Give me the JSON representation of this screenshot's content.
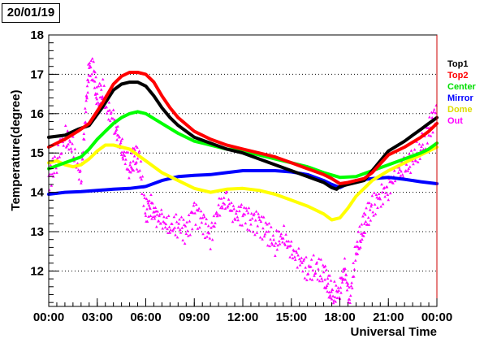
{
  "date_label": "20/01/19",
  "chart_data": {
    "type": "line",
    "title": "",
    "xlabel": "Universal Time",
    "ylabel": "Temperature(degree)",
    "x_ticks": [
      "00:00",
      "03:00",
      "06:00",
      "09:00",
      "12:00",
      "15:00",
      "18:00",
      "21:00",
      "00:00"
    ],
    "xlim": [
      0,
      24
    ],
    "y_ticks": [
      "12",
      "13",
      "14",
      "15",
      "16",
      "17",
      "18"
    ],
    "ylim": [
      11.1,
      18.0
    ],
    "grid": "horizontal dotted",
    "legend_position": "right",
    "series": [
      {
        "name": "Top1",
        "color": "#000000",
        "x": [
          0,
          1,
          1.8,
          2.5,
          3.3,
          4,
          4.5,
          5,
          5.5,
          6,
          6.5,
          7,
          7.5,
          8,
          9,
          10,
          11,
          12,
          13,
          14,
          15,
          16,
          17,
          17.5,
          17.8,
          18,
          18.5,
          19,
          19.5,
          20,
          21,
          22,
          22.5,
          23,
          23.5,
          24
        ],
        "y": [
          15.4,
          15.45,
          15.6,
          15.7,
          16.15,
          16.6,
          16.75,
          16.8,
          16.8,
          16.7,
          16.45,
          16.15,
          15.9,
          15.7,
          15.4,
          15.25,
          15.1,
          15.0,
          14.85,
          14.7,
          14.55,
          14.4,
          14.25,
          14.12,
          14.08,
          14.15,
          14.2,
          14.25,
          14.3,
          14.55,
          15.05,
          15.3,
          15.45,
          15.6,
          15.75,
          15.9
        ]
      },
      {
        "name": "Top2",
        "color": "#ff0000",
        "x": [
          0,
          1,
          1.8,
          2.5,
          3.3,
          4,
          4.5,
          5,
          5.5,
          6,
          6.5,
          7,
          7.5,
          8,
          9,
          10,
          11,
          12,
          13,
          14,
          15,
          16,
          17,
          17.5,
          18,
          18.5,
          19,
          19.5,
          20,
          21,
          22,
          23,
          23.5,
          24
        ],
        "y": [
          15.15,
          15.35,
          15.55,
          15.75,
          16.25,
          16.75,
          16.95,
          17.05,
          17.05,
          17.0,
          16.8,
          16.45,
          16.15,
          15.9,
          15.55,
          15.35,
          15.2,
          15.1,
          15.0,
          14.9,
          14.75,
          14.6,
          14.45,
          14.35,
          14.22,
          14.25,
          14.3,
          14.35,
          14.5,
          14.95,
          15.15,
          15.4,
          15.55,
          15.75
        ]
      },
      {
        "name": "Center",
        "color": "#00ff00",
        "x": [
          0,
          1,
          2,
          2.5,
          3,
          3.5,
          4,
          4.5,
          5,
          5.5,
          6,
          7,
          8,
          9,
          10,
          11,
          12,
          13,
          14,
          15,
          16,
          17,
          18,
          19,
          20,
          21,
          22,
          23,
          23.5,
          24
        ],
        "y": [
          14.6,
          14.75,
          14.9,
          15.1,
          15.35,
          15.55,
          15.75,
          15.9,
          16.0,
          16.05,
          16.0,
          15.75,
          15.5,
          15.3,
          15.2,
          15.1,
          15.05,
          14.95,
          14.85,
          14.75,
          14.65,
          14.5,
          14.38,
          14.4,
          14.55,
          14.7,
          14.85,
          15.0,
          15.1,
          15.25
        ]
      },
      {
        "name": "Mirror",
        "color": "#0000ff",
        "x": [
          0,
          1,
          2,
          3,
          4,
          5,
          6,
          7,
          8,
          9,
          10,
          11,
          12,
          13,
          14,
          15,
          16,
          17,
          17.5,
          18,
          18.5,
          19,
          20,
          21,
          22,
          23,
          24
        ],
        "y": [
          13.95,
          14.0,
          14.02,
          14.05,
          14.08,
          14.1,
          14.15,
          14.3,
          14.4,
          14.43,
          14.45,
          14.5,
          14.55,
          14.55,
          14.55,
          14.52,
          14.45,
          14.3,
          14.2,
          14.12,
          14.22,
          14.3,
          14.35,
          14.38,
          14.33,
          14.27,
          14.22
        ]
      },
      {
        "name": "Dome",
        "color": "#ffff00",
        "x": [
          0,
          0.5,
          1,
          1.5,
          2,
          2.5,
          3,
          3.5,
          4,
          4.5,
          5,
          5.5,
          6,
          7,
          8,
          9,
          10,
          11,
          12,
          13,
          14,
          15,
          16,
          17,
          17.5,
          18,
          18.5,
          19,
          19.5,
          20,
          21,
          22,
          23,
          24
        ],
        "y": [
          14.75,
          14.8,
          14.7,
          14.65,
          14.7,
          14.85,
          15.05,
          15.2,
          15.2,
          15.15,
          15.1,
          14.95,
          14.8,
          14.5,
          14.3,
          14.1,
          14.0,
          14.08,
          14.1,
          14.05,
          13.95,
          13.8,
          13.65,
          13.45,
          13.3,
          13.35,
          13.6,
          13.9,
          14.1,
          14.3,
          14.55,
          14.75,
          14.95,
          15.15
        ]
      },
      {
        "name": "Out",
        "color": "#ff00ff",
        "style": "markers",
        "x": [
          0,
          0.5,
          1,
          1.5,
          2,
          2.3,
          2.5,
          2.8,
          3,
          3.3,
          3.6,
          4,
          4.3,
          4.6,
          5,
          5.3,
          5.6,
          6,
          6.3,
          6.6,
          7,
          7.5,
          8,
          8.5,
          9,
          9.5,
          10,
          10.5,
          11,
          11.5,
          12,
          12.5,
          13,
          13.5,
          14,
          14.5,
          15,
          15.5,
          16,
          16.5,
          17,
          17.3,
          17.6,
          18,
          18.3,
          18.6,
          19,
          19.3,
          19.6,
          20,
          20.5,
          21,
          21.5,
          22,
          22.5,
          23,
          23.5,
          24
        ],
        "y": [
          14.3,
          14.8,
          15.4,
          15.1,
          14.3,
          16.2,
          17.2,
          17.0,
          16.3,
          16.6,
          16.2,
          15.8,
          15.4,
          15.0,
          14.6,
          14.9,
          14.8,
          13.5,
          13.7,
          13.4,
          13.3,
          13.1,
          13.2,
          13.0,
          13.5,
          13.3,
          12.9,
          13.6,
          13.8,
          13.4,
          13.5,
          13.3,
          13.2,
          13.0,
          12.7,
          12.9,
          12.5,
          12.3,
          12.0,
          12.1,
          11.9,
          11.6,
          11.4,
          11.5,
          12.1,
          11.2,
          12.5,
          12.9,
          13.3,
          13.6,
          13.9,
          14.1,
          14.5,
          14.6,
          14.8,
          15.2,
          15.6,
          16.1
        ]
      }
    ]
  }
}
